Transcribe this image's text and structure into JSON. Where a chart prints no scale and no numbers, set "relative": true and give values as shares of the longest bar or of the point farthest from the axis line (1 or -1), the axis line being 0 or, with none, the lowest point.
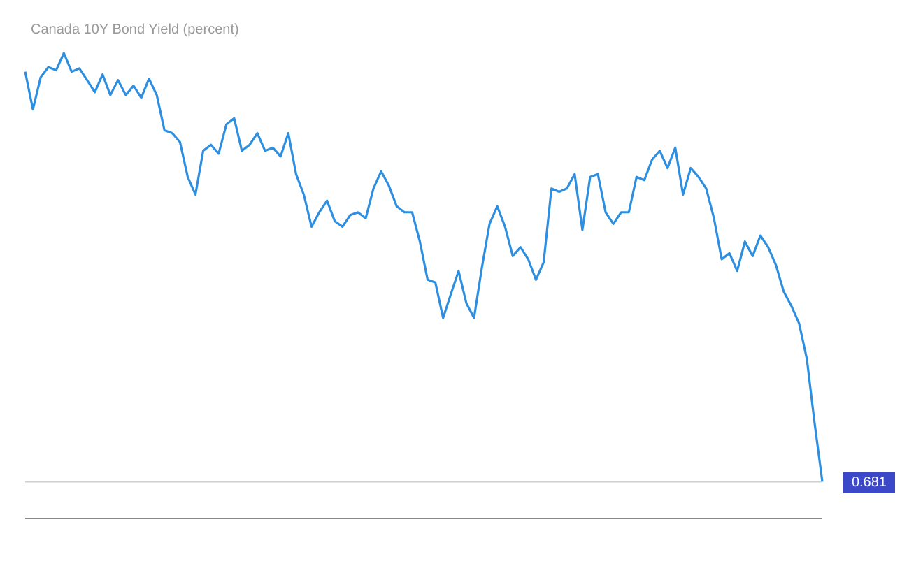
{
  "chart_data": {
    "type": "line",
    "title": "Canada 10Y Bond Yield (percent)",
    "relative": true,
    "marker": "none",
    "categories": [
      null,
      null,
      null,
      null,
      null,
      null,
      null,
      null,
      null,
      null,
      null,
      null,
      null,
      null,
      null,
      null,
      null,
      null,
      null,
      null,
      null,
      null,
      null,
      null,
      null,
      null,
      null,
      null,
      null,
      null,
      null,
      null,
      null,
      null,
      null,
      null,
      null,
      null,
      null,
      null,
      null,
      null,
      null,
      null,
      null,
      null,
      null,
      null,
      null,
      null,
      null,
      null,
      null,
      null,
      null,
      null,
      null,
      null,
      null,
      null,
      null,
      null,
      null,
      null,
      null,
      null,
      null,
      null,
      null,
      null,
      null,
      null,
      null,
      null,
      null,
      null,
      null,
      null,
      null,
      null,
      null,
      null,
      null,
      null,
      null,
      null,
      null,
      null,
      null,
      null,
      null,
      null,
      null,
      null,
      null,
      null,
      null,
      null,
      null,
      null,
      null,
      null,
      null,
      null
    ],
    "series": [
      {
        "color": "#2e8fe0",
        "values": [
          0.96,
          0.879,
          0.948,
          0.97,
          0.963,
          1,
          0.96,
          0.967,
          0.942,
          0.916,
          0.954,
          0.91,
          0.942,
          0.91,
          0.93,
          0.904,
          0.945,
          0.91,
          0.834,
          0.828,
          0.809,
          0.734,
          0.696,
          0.79,
          0.803,
          0.784,
          0.847,
          0.86,
          0.79,
          0.803,
          0.828,
          0.79,
          0.797,
          0.778,
          0.828,
          0.74,
          0.696,
          0.627,
          0.658,
          0.683,
          0.639,
          0.627,
          0.652,
          0.658,
          0.645,
          0.709,
          0.746,
          0.715,
          0.671,
          0.658,
          0.658,
          0.595,
          0.513,
          0.507,
          0.431,
          0.482,
          0.532,
          0.463,
          0.431,
          0.538,
          0.633,
          0.671,
          0.627,
          0.564,
          0.583,
          0.557,
          0.513,
          0.551,
          0.709,
          0.702,
          0.709,
          0.74,
          0.62,
          0.734,
          0.74,
          0.658,
          0.633,
          0.658,
          0.658,
          0.734,
          0.727,
          0.771,
          0.79,
          0.753,
          0.797,
          0.696,
          0.753,
          0.734,
          0.709,
          0.645,
          0.557,
          0.57,
          0.532,
          0.595,
          0.564,
          0.608,
          0.583,
          0.545,
          0.488,
          0.457,
          0.419,
          0.343,
          0.205,
          0.079
        ]
      }
    ],
    "annotations": [
      "0.681"
    ],
    "ref_lines": [
      {
        "axis": "y",
        "value": 0.079,
        "color": "#d0d0d0"
      }
    ]
  }
}
